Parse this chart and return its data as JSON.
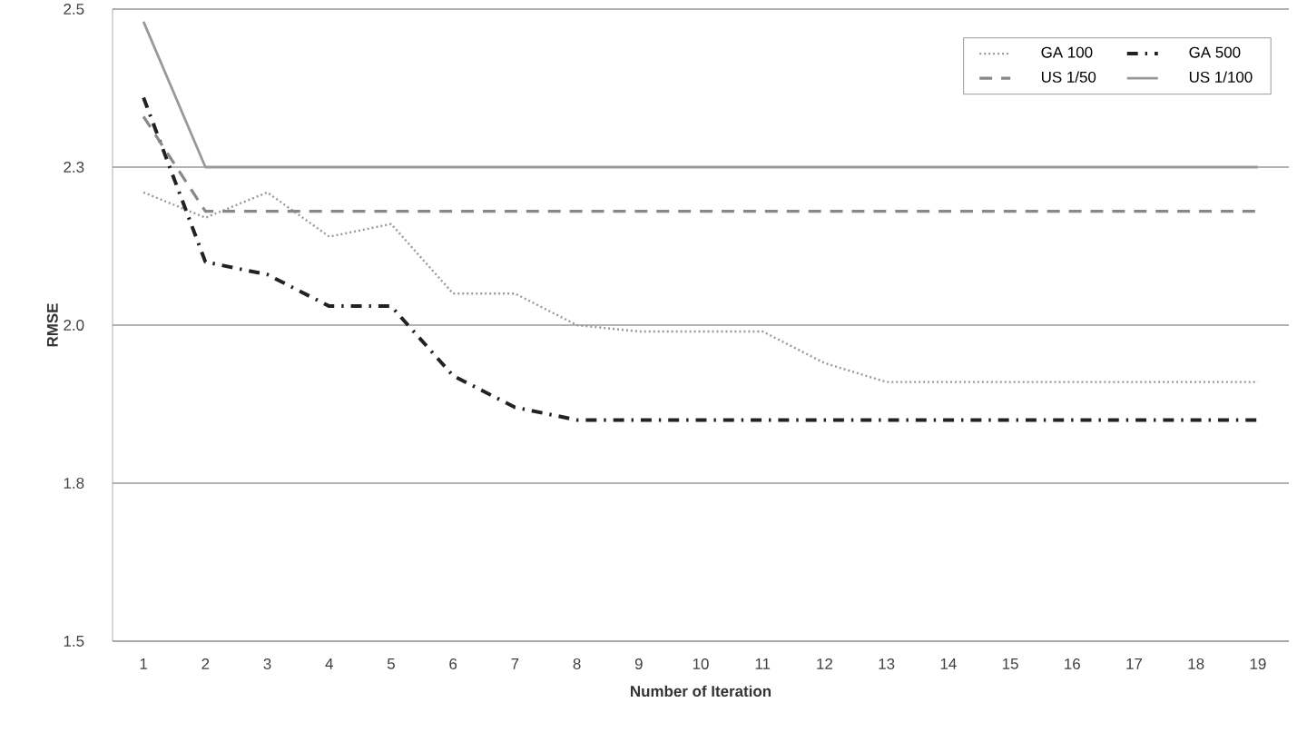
{
  "chart_data": {
    "type": "line",
    "xlabel": "Number of Iteration",
    "ylabel": "RMSE",
    "categories": [
      "1",
      "2",
      "3",
      "4",
      "5",
      "6",
      "7",
      "8",
      "9",
      "10",
      "11",
      "12",
      "13",
      "14",
      "15",
      "16",
      "17",
      "18",
      "19"
    ],
    "series": [
      {
        "name": "GA 100",
        "color": "#999999",
        "line_style": "dotted",
        "values": [
          2.21,
          2.17,
          2.21,
          2.14,
          2.16,
          2.05,
          2.05,
          2.0,
          1.99,
          1.99,
          1.99,
          1.94,
          1.91,
          1.91,
          1.91,
          1.91,
          1.91,
          1.91,
          1.91
        ]
      },
      {
        "name": "GA 500",
        "color": "#222222",
        "line_style": "dashdot",
        "values": [
          2.36,
          2.1,
          2.08,
          2.03,
          2.03,
          1.92,
          1.87,
          1.85,
          1.85,
          1.85,
          1.85,
          1.85,
          1.85,
          1.85,
          1.85,
          1.85,
          1.85,
          1.85,
          1.85
        ]
      },
      {
        "name": "US 1/50",
        "color": "#888888",
        "line_style": "dashed",
        "values": [
          2.33,
          2.18,
          2.18,
          2.18,
          2.18,
          2.18,
          2.18,
          2.18,
          2.18,
          2.18,
          2.18,
          2.18,
          2.18,
          2.18,
          2.18,
          2.18,
          2.18,
          2.18,
          2.18
        ]
      },
      {
        "name": "US 1/100",
        "color": "#999999",
        "line_style": "solid",
        "values": [
          2.48,
          2.25,
          2.25,
          2.25,
          2.25,
          2.25,
          2.25,
          2.25,
          2.25,
          2.25,
          2.25,
          2.25,
          2.25,
          2.25,
          2.25,
          2.25,
          2.25,
          2.25,
          2.25
        ]
      }
    ],
    "ylim": [
      1.5,
      2.5
    ],
    "yticks": [
      1.5,
      {
        "value": 1.75,
        "label": "1.8"
      },
      {
        "value": 2,
        "label": "2.0"
      },
      {
        "value": 2.25,
        "label": "2.3"
      },
      2.5
    ],
    "grid": "y",
    "legend": "top right",
    "marker": "none"
  }
}
